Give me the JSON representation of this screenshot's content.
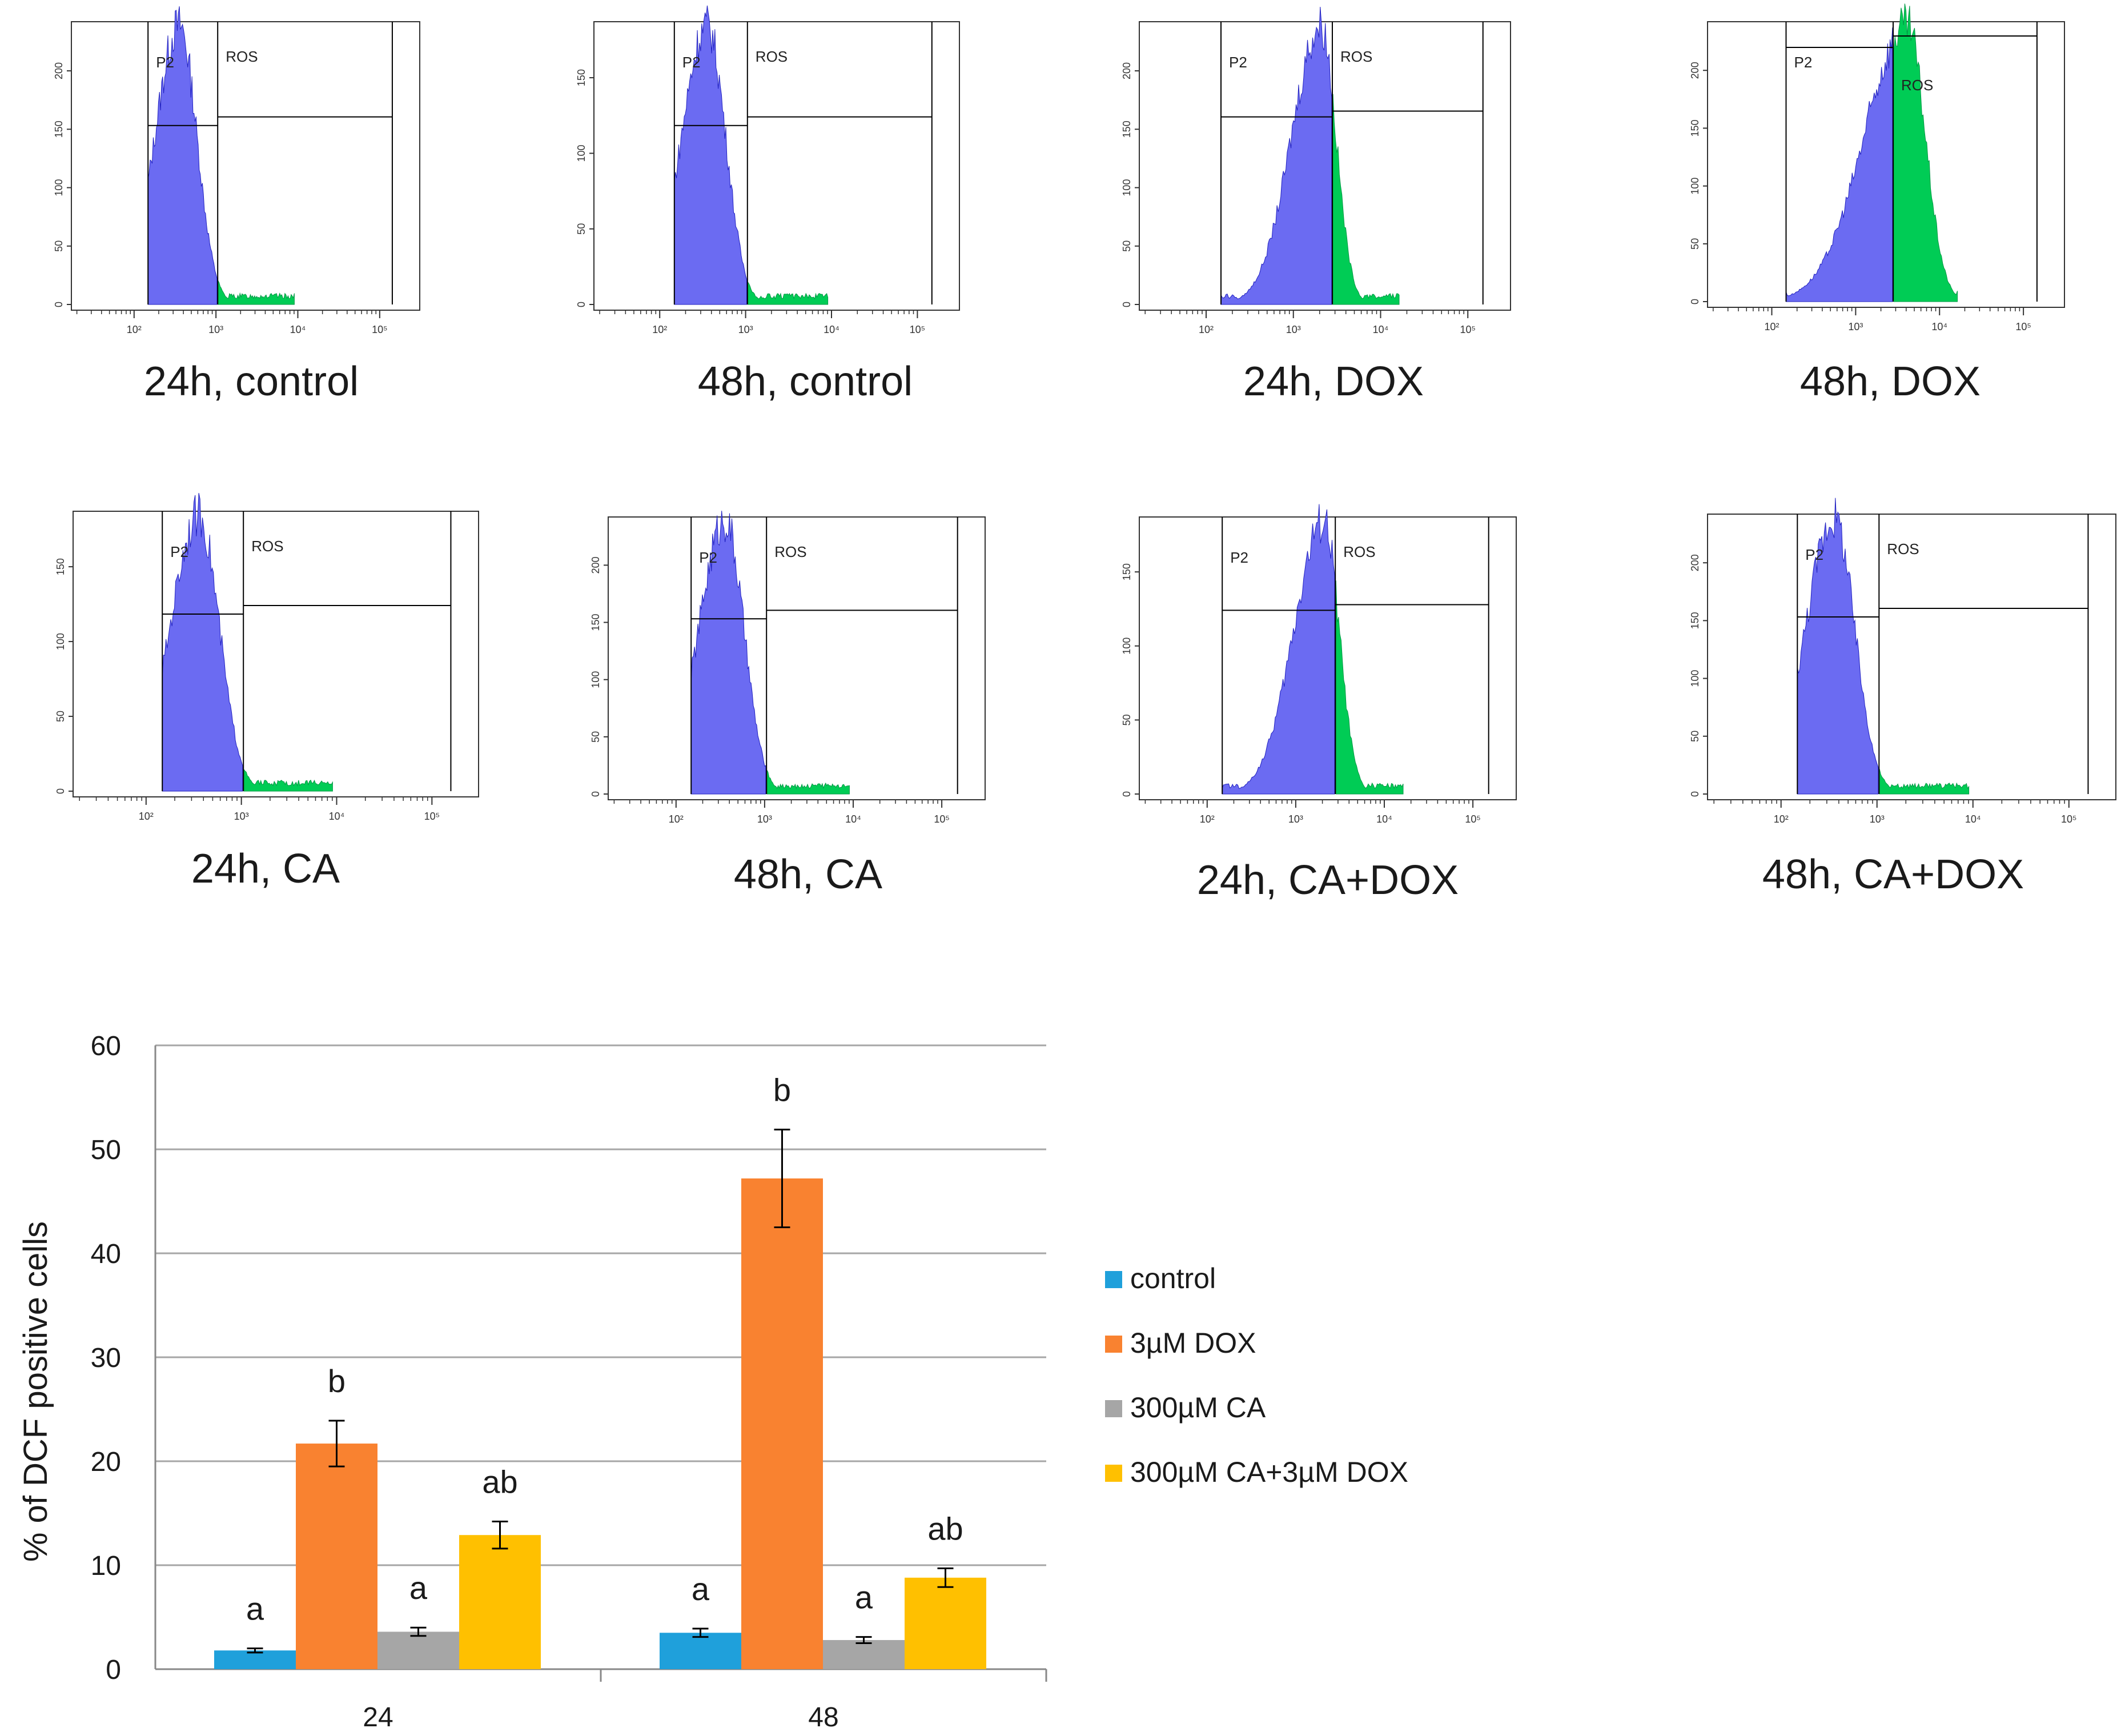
{
  "colors": {
    "control": "#1fa0db",
    "dox": "#f98230",
    "ca": "#a6a6a6",
    "ca_dox": "#ffc000",
    "hist_p2": "#6b6bf2",
    "hist_ros": "#00cc55",
    "grid": "#a6a6a6",
    "text": "#1a1a1a"
  },
  "histograms": [
    {
      "caption": "24h, control",
      "gate_p2": "P2",
      "gate_ros": "ROS",
      "shape": "control",
      "yticks": [
        "0",
        "50",
        "100",
        "150",
        "200"
      ],
      "xticks": [
        "10²",
        "10³",
        "10⁴",
        "10⁵"
      ]
    },
    {
      "caption": "48h, control",
      "gate_p2": "P2",
      "gate_ros": "ROS",
      "shape": "control",
      "yticks": [
        "0",
        "50",
        "100",
        "150"
      ],
      "xticks": [
        "10²",
        "10³",
        "10⁴",
        "10⁵"
      ]
    },
    {
      "caption": "24h, DOX",
      "gate_p2": "P2",
      "gate_ros": "ROS",
      "shape": "dox24",
      "yticks": [
        "0",
        "50",
        "100",
        "150",
        "200"
      ],
      "xticks": [
        "10²",
        "10³",
        "10⁴",
        "10⁵"
      ]
    },
    {
      "caption": "48h, DOX",
      "gate_p2": "P2",
      "gate_ros": "ROS",
      "shape": "dox48",
      "yticks": [
        "0",
        "50",
        "100",
        "150",
        "200"
      ],
      "xticks": [
        "10²",
        "10³",
        "10⁴",
        "10⁵"
      ]
    },
    {
      "caption": "24h, CA",
      "gate_p2": "P2",
      "gate_ros": "ROS",
      "shape": "control",
      "yticks": [
        "0",
        "50",
        "100",
        "150"
      ],
      "xticks": [
        "10²",
        "10³",
        "10⁴",
        "10⁵"
      ]
    },
    {
      "caption": "48h, CA",
      "gate_p2": "P2",
      "gate_ros": "ROS",
      "shape": "control",
      "yticks": [
        "0",
        "50",
        "100",
        "150",
        "200"
      ],
      "xticks": [
        "10²",
        "10³",
        "10⁴",
        "10⁵"
      ]
    },
    {
      "caption": "24h, CA+DOX",
      "gate_p2": "P2",
      "gate_ros": "ROS",
      "shape": "dox24",
      "yticks": [
        "0",
        "50",
        "100",
        "150"
      ],
      "xticks": [
        "10²",
        "10³",
        "10⁴",
        "10⁵"
      ]
    },
    {
      "caption": "48h, CA+DOX",
      "gate_p2": "P2",
      "gate_ros": "ROS",
      "shape": "control",
      "yticks": [
        "0",
        "50",
        "100",
        "150",
        "200"
      ],
      "xticks": [
        "10²",
        "10³",
        "10⁴",
        "10⁵"
      ]
    }
  ],
  "chart_data": {
    "type": "bar",
    "title": "",
    "xlabel": "",
    "ylabel": "% of DCF positive cells",
    "ylim": [
      0,
      60
    ],
    "yticks": [
      0,
      10,
      20,
      30,
      40,
      50,
      60
    ],
    "grid": true,
    "legend_position": "right",
    "categories": [
      "24",
      "48"
    ],
    "series": [
      {
        "name": "control",
        "values": [
          1.8,
          3.5
        ],
        "errors": [
          0.2,
          0.4
        ],
        "letters": [
          "a",
          "a"
        ]
      },
      {
        "name": "3µM DOX",
        "values": [
          21.7,
          47.2
        ],
        "errors": [
          2.2,
          4.7
        ],
        "letters": [
          "b",
          "b"
        ]
      },
      {
        "name": "300µM CA",
        "values": [
          3.6,
          2.8
        ],
        "errors": [
          0.4,
          0.3
        ],
        "letters": [
          "a",
          "a"
        ]
      },
      {
        "name": "300µM CA+3µM DOX",
        "values": [
          12.9,
          8.8
        ],
        "errors": [
          1.3,
          0.9
        ],
        "letters": [
          "ab",
          "ab"
        ]
      }
    ]
  }
}
